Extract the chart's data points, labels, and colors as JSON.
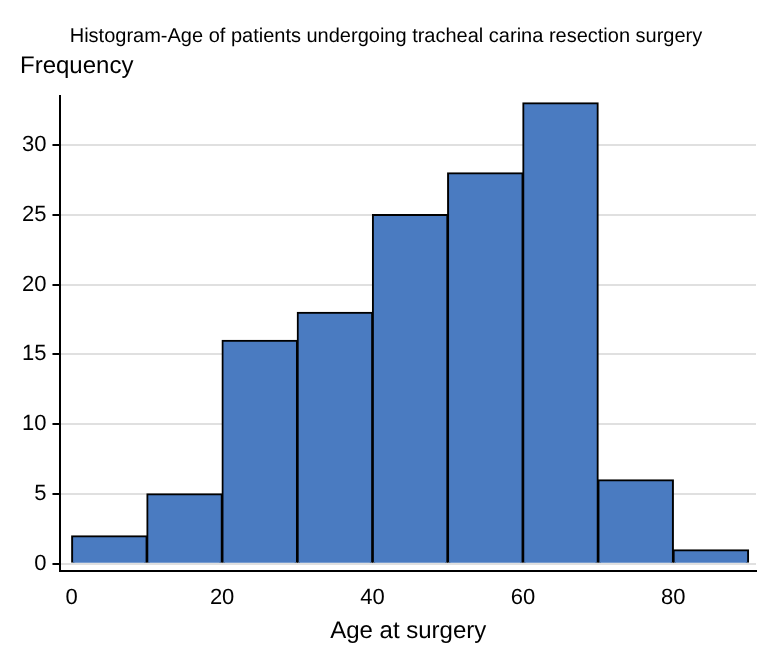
{
  "chart_data": {
    "type": "histogram",
    "title": "Histogram-Age of patients undergoing tracheal carina resection surgery",
    "xlabel": "Age at surgery",
    "ylabel": "Frequency",
    "bins": [
      0,
      10,
      20,
      30,
      40,
      50,
      60,
      70,
      80,
      90
    ],
    "values": [
      2,
      5,
      16,
      18,
      25,
      28,
      33,
      6,
      1
    ],
    "color": "#4a7bc1",
    "xlim": [
      -1.5,
      91
    ],
    "xticks": [
      0,
      20,
      40,
      60,
      80
    ],
    "ylim": [
      -0.5,
      33.5
    ],
    "yticks": [
      0,
      5,
      10,
      15,
      20,
      25,
      30
    ],
    "grid": "y",
    "legend": false
  }
}
